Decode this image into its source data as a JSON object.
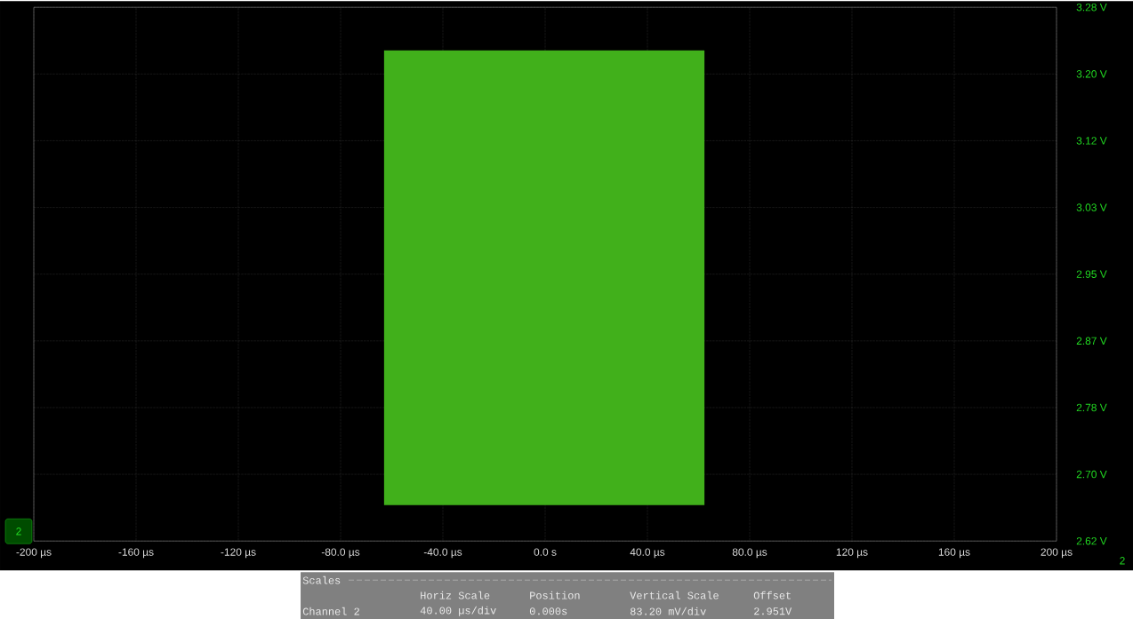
{
  "chart_data": {
    "type": "line",
    "series": [
      {
        "color": "#41b01b",
        "x": [
          -63,
          62.3
        ],
        "values": [
          null,
          null
        ],
        "lower": [
          2.663,
          2.663
        ],
        "upper": [
          3.23,
          3.23
        ]
      }
    ],
    "xlim": [
      -200,
      200
    ],
    "xticks": [
      {
        "value": -200,
        "label": "-200 µs"
      },
      {
        "value": -160,
        "label": "-160 µs"
      },
      {
        "value": -120,
        "label": "-120 µs"
      },
      {
        "value": -80,
        "label": "-80.0 µs"
      },
      {
        "value": -40,
        "label": "-40.0 µs"
      },
      {
        "value": 0,
        "label": "0.0 s"
      },
      {
        "value": 40,
        "label": "40.0 µs"
      },
      {
        "value": 80,
        "label": "80.0 µs"
      },
      {
        "value": 120,
        "label": "120 µs"
      },
      {
        "value": 160,
        "label": "160 µs"
      },
      {
        "value": 200,
        "label": "200 µs"
      }
    ],
    "ylim": [
      2.6182,
      3.2838
    ],
    "yticks": [
      {
        "value": 2.6182,
        "label": "2.62 V"
      },
      {
        "value": 2.7014,
        "label": "2.70 V"
      },
      {
        "value": 2.7846,
        "label": "2.78 V"
      },
      {
        "value": 2.8678,
        "label": "2.87 V"
      },
      {
        "value": 2.951,
        "label": "2.95 V"
      },
      {
        "value": 3.0342,
        "label": "3.03 V"
      },
      {
        "value": 3.1174,
        "label": "3.12 V"
      },
      {
        "value": 3.2006,
        "label": "3.20 V"
      },
      {
        "value": 3.2838,
        "label": "3.28 V"
      }
    ],
    "grid": true,
    "annotations": [
      "Scales",
      "Horiz Scale",
      "Position",
      "Vertical Scale",
      "Offset",
      "Channel 2",
      "40.00 µs/div",
      "0.000s",
      "83.20 mV/div",
      "2.951V",
      "2",
      "2"
    ]
  }
}
